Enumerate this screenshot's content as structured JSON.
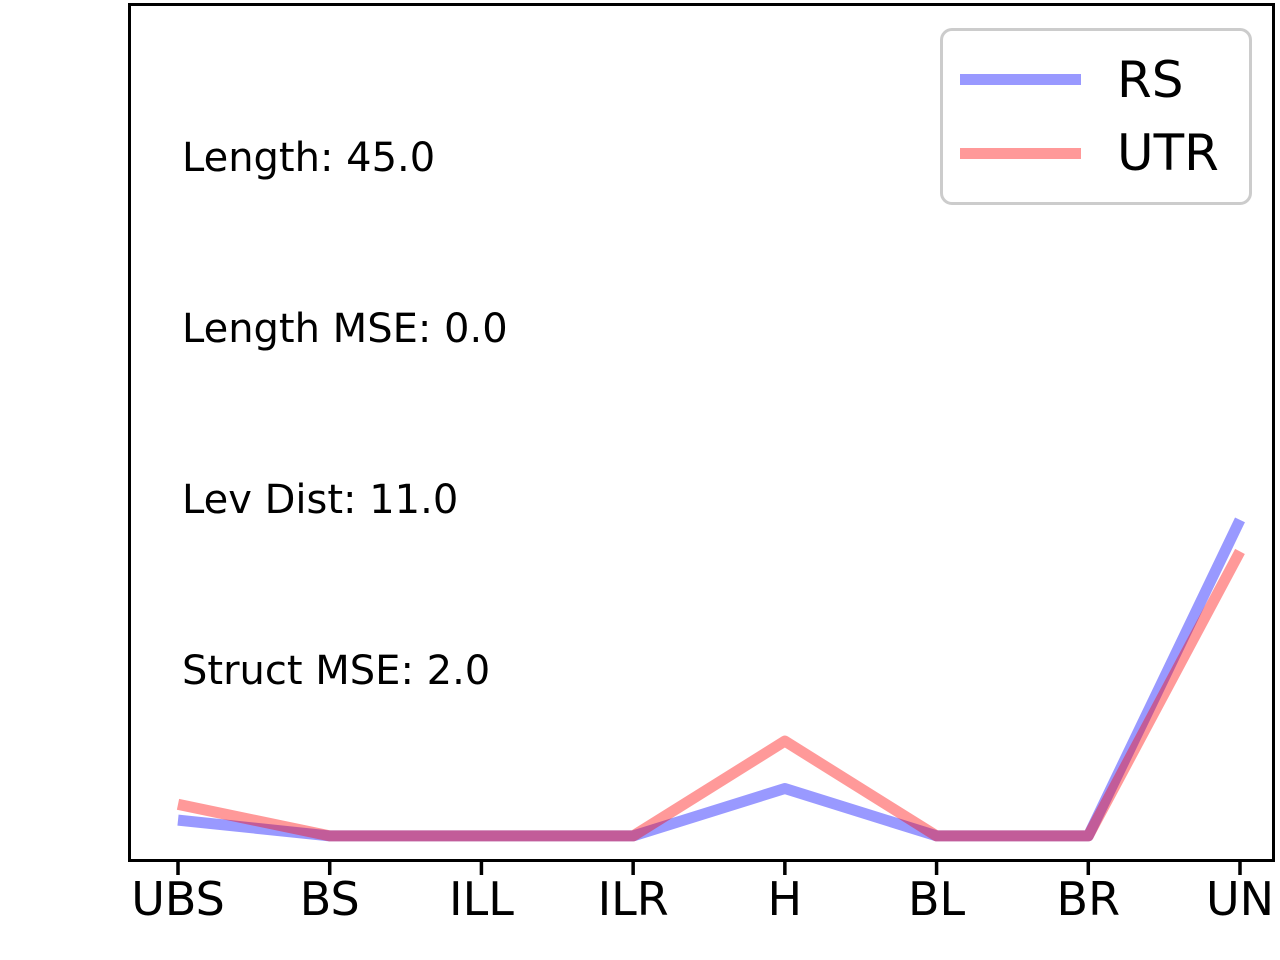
{
  "figure": {
    "background": "#ffffff",
    "axis_color": "#000000",
    "legend_border_color": "#cccccc"
  },
  "chart_data": {
    "type": "line",
    "title": "",
    "xlabel": "",
    "ylabel": "",
    "categories": [
      "UBS",
      "BS",
      "ILL",
      "ILR",
      "H",
      "BL",
      "BR",
      "UN"
    ],
    "series": [
      {
        "name": "RS",
        "color": "rgba(0,0,255,0.4)",
        "solid_color_on_white": "#9b9bf0",
        "values": [
          1,
          0,
          0,
          0,
          3,
          0,
          0,
          20
        ]
      },
      {
        "name": "UTR",
        "color": "rgba(255,0,0,0.4)",
        "solid_color_on_white": "#fc9b9b",
        "values": [
          2,
          0,
          0,
          0,
          6,
          0,
          0,
          18
        ]
      }
    ],
    "overlap_blend_color": "#c35d99",
    "ylim": [
      -1.65,
      52.7
    ],
    "grid": false,
    "y_axis_tick_labels_visible": false,
    "legend_position": "upper right",
    "annotations": [
      "Length: 45.0",
      "Length MSE: 0.0",
      "Lev Dist: 11.0",
      "Struct MSE: 2.0"
    ]
  }
}
